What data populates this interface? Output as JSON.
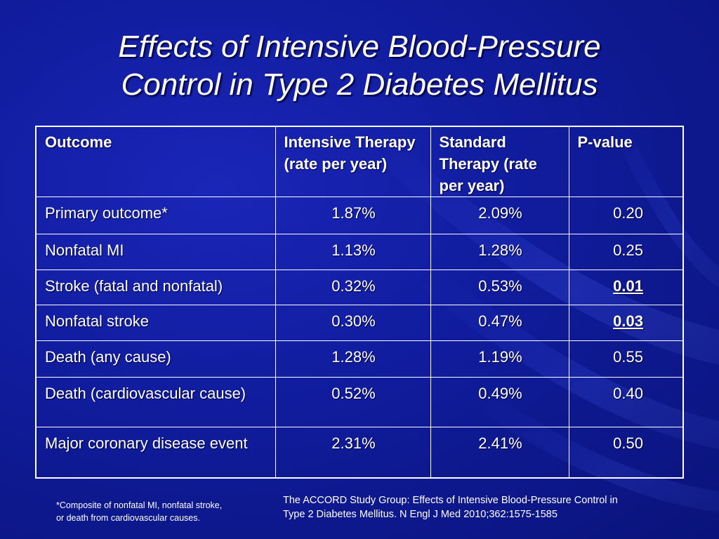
{
  "slide": {
    "title_line1": "Effects of Intensive Blood-Pressure",
    "title_line2": "Control in Type 2 Diabetes Mellitus"
  },
  "table": {
    "headers": [
      "Outcome",
      "Intensive Therapy (rate per year)",
      "Standard Therapy (rate per year)",
      "P-value"
    ],
    "rows": [
      {
        "outcome": "Primary outcome*",
        "intensive": "1.87%",
        "standard": "2.09%",
        "p": "0.20"
      },
      {
        "outcome": "Nonfatal MI",
        "intensive": "1.13%",
        "standard": "1.28%",
        "p": "0.25"
      },
      {
        "outcome": "Stroke (fatal and nonfatal)",
        "intensive": "0.32%",
        "standard": "0.53%",
        "p": "0.01"
      },
      {
        "outcome": "Nonfatal stroke",
        "intensive": "0.30%",
        "standard": "0.47%",
        "p": "0.03"
      },
      {
        "outcome": "Death (any cause)",
        "intensive": "1.28%",
        "standard": "1.19%",
        "p": "0.55"
      },
      {
        "outcome": "Death (cardiovascular cause)",
        "intensive": "0.52%",
        "standard": "0.49%",
        "p": "0.40"
      },
      {
        "outcome": "Major coronary disease event",
        "intensive": "2.31%",
        "standard": "2.41%",
        "p": "0.50"
      }
    ]
  },
  "footnote": "*Composite of nonfatal MI, nonfatal stroke, or death from cardiovascular causes.",
  "citation": "The ACCORD Study Group: Effects of Intensive Blood-Pressure Control in Type 2 Diabetes Mellitus. N Engl J Med 2010;362:1575-1585",
  "colors": {
    "background": "#101c9c",
    "background_dark": "#0a137a",
    "text": "#ffffff",
    "table_border": "#ffffff"
  }
}
